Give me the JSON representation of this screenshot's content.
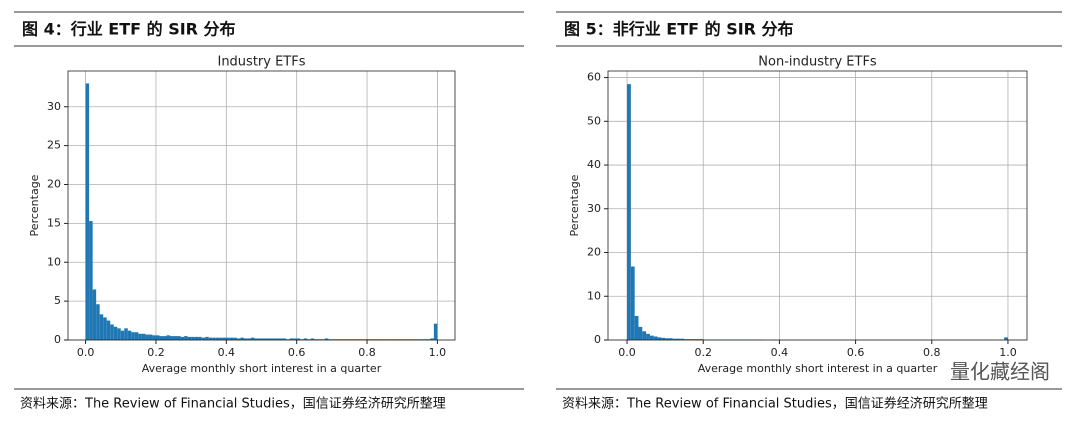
{
  "chart_data": [
    {
      "type": "histogram",
      "header": "图 4：行业 ETF 的 SIR 分布",
      "title": "Industry ETFs",
      "x_label": "Average monthly short interest in a quarter",
      "y_label": "Percentage",
      "source": "资料来源：The Review of Financial Studies，国信证券经济研究所整理",
      "color": "#1f77b4",
      "grid": true,
      "bins": [
        0,
        0.01,
        0.02,
        0.03,
        0.04,
        0.05,
        0.06,
        0.07,
        0.08,
        0.09,
        0.1,
        0.11,
        0.12,
        0.13,
        0.14,
        0.15,
        0.16,
        0.17,
        0.18,
        0.19,
        0.2,
        0.21,
        0.22,
        0.23,
        0.24,
        0.25,
        0.26,
        0.27,
        0.28,
        0.29,
        0.3,
        0.31,
        0.32,
        0.33,
        0.34,
        0.35,
        0.36,
        0.37,
        0.38,
        0.39,
        0.4,
        0.41,
        0.42,
        0.43,
        0.44,
        0.45,
        0.46,
        0.47,
        0.48,
        0.49,
        0.5,
        0.51,
        0.52,
        0.53,
        0.54,
        0.55,
        0.56,
        0.57,
        0.58,
        0.59,
        0.6,
        0.61,
        0.62,
        0.63,
        0.64,
        0.65,
        0.66,
        0.67,
        0.68,
        0.69,
        0.7,
        0.71,
        0.72,
        0.73,
        0.74,
        0.75,
        0.76,
        0.77,
        0.78,
        0.79,
        0.8,
        0.81,
        0.82,
        0.83,
        0.84,
        0.85,
        0.86,
        0.87,
        0.88,
        0.89,
        0.9,
        0.91,
        0.92,
        0.93,
        0.94,
        0.95,
        0.96,
        0.97,
        0.98,
        0.99,
        1.0
      ],
      "values": [
        33.0,
        15.3,
        6.5,
        4.6,
        3.3,
        2.9,
        2.5,
        2.0,
        1.7,
        1.5,
        1.2,
        1.5,
        1.2,
        1.0,
        1.0,
        0.8,
        0.8,
        0.7,
        0.7,
        0.6,
        0.6,
        0.5,
        0.5,
        0.6,
        0.5,
        0.5,
        0.5,
        0.4,
        0.5,
        0.4,
        0.4,
        0.4,
        0.4,
        0.3,
        0.4,
        0.3,
        0.3,
        0.3,
        0.3,
        0.3,
        0.3,
        0.3,
        0.3,
        0.2,
        0.3,
        0.2,
        0.2,
        0.3,
        0.2,
        0.2,
        0.2,
        0.2,
        0.2,
        0.2,
        0.2,
        0.2,
        0.2,
        0.1,
        0.2,
        0.2,
        0.2,
        0.1,
        0.2,
        0.1,
        0.2,
        0.1,
        0.1,
        0.1,
        0.2,
        0.1,
        0.1,
        0.1,
        0.1,
        0.1,
        0.1,
        0.1,
        0.1,
        0.1,
        0.1,
        0.1,
        0.1,
        0.1,
        0.1,
        0.1,
        0.1,
        0.1,
        0.1,
        0.1,
        0.1,
        0.1,
        0.1,
        0.1,
        0.1,
        0.1,
        0.1,
        0.1,
        0.1,
        0.1,
        0.2,
        2.1
      ],
      "xlim": [
        -0.05,
        1.05
      ],
      "ylim": [
        0,
        34.6
      ],
      "xticks": [
        {
          "value": 0,
          "label": "0.0"
        },
        0.2,
        0.4,
        0.6,
        0.8,
        {
          "value": 1,
          "label": "1.0"
        }
      ],
      "yticks": [
        0,
        5,
        10,
        15,
        20,
        25,
        30
      ]
    },
    {
      "type": "histogram",
      "header": "图 5：非行业 ETF 的 SIR 分布",
      "title": "Non-industry ETFs",
      "x_label": "Average monthly short interest in a quarter",
      "y_label": "Percentage",
      "source": "资料来源：The Review of Financial Studies，国信证券经济研究所整理",
      "color": "#1f77b4",
      "grid": true,
      "bins": [
        0,
        0.01,
        0.02,
        0.03,
        0.04,
        0.05,
        0.06,
        0.07,
        0.08,
        0.09,
        0.1,
        0.11,
        0.12,
        0.13,
        0.14,
        0.15,
        0.16,
        0.17,
        0.18,
        0.19,
        0.2,
        0.21,
        0.22,
        0.23,
        0.24,
        0.25,
        0.26,
        0.27,
        0.28,
        0.29,
        0.3,
        0.31,
        0.32,
        0.33,
        0.34,
        0.35,
        0.36,
        0.37,
        0.38,
        0.39,
        0.4,
        0.41,
        0.42,
        0.43,
        0.44,
        0.45,
        0.46,
        0.47,
        0.48,
        0.49,
        0.5,
        0.51,
        0.52,
        0.53,
        0.54,
        0.55,
        0.56,
        0.57,
        0.58,
        0.59,
        0.6,
        0.61,
        0.62,
        0.63,
        0.64,
        0.65,
        0.66,
        0.67,
        0.68,
        0.69,
        0.7,
        0.71,
        0.72,
        0.73,
        0.74,
        0.75,
        0.76,
        0.77,
        0.78,
        0.79,
        0.8,
        0.81,
        0.82,
        0.83,
        0.84,
        0.85,
        0.86,
        0.87,
        0.88,
        0.89,
        0.9,
        0.91,
        0.92,
        0.93,
        0.94,
        0.95,
        0.96,
        0.97,
        0.98,
        0.99,
        1.0
      ],
      "values": [
        58.5,
        16.8,
        5.5,
        3.0,
        2.0,
        1.4,
        1.0,
        0.8,
        0.6,
        0.5,
        0.4,
        0.4,
        0.3,
        0.3,
        0.3,
        0.2,
        0.2,
        0.2,
        0.2,
        0.2,
        0.1,
        0.1,
        0.1,
        0.1,
        0.1,
        0.1,
        0.1,
        0.1,
        0.1,
        0.1,
        0.1,
        0.1,
        0.1,
        0.1,
        0.1,
        0.1,
        0,
        0,
        0.1,
        0,
        0,
        0,
        0,
        0,
        0,
        0,
        0,
        0,
        0,
        0,
        0,
        0,
        0,
        0,
        0,
        0,
        0,
        0,
        0,
        0,
        0,
        0,
        0,
        0,
        0,
        0,
        0,
        0,
        0,
        0,
        0,
        0,
        0,
        0,
        0,
        0,
        0,
        0,
        0,
        0,
        0,
        0,
        0,
        0,
        0,
        0,
        0,
        0,
        0,
        0,
        0,
        0,
        0,
        0,
        0,
        0,
        0,
        0,
        0,
        0.6
      ],
      "xlim": [
        -0.05,
        1.05
      ],
      "ylim": [
        0,
        61.5
      ],
      "xticks": [
        {
          "value": 0,
          "label": "0.0"
        },
        0.2,
        0.4,
        0.6,
        0.8,
        {
          "value": 1,
          "label": "1.0"
        }
      ],
      "yticks": [
        0,
        10,
        20,
        30,
        40,
        50,
        60
      ]
    }
  ],
  "watermark": "量化藏经阁"
}
